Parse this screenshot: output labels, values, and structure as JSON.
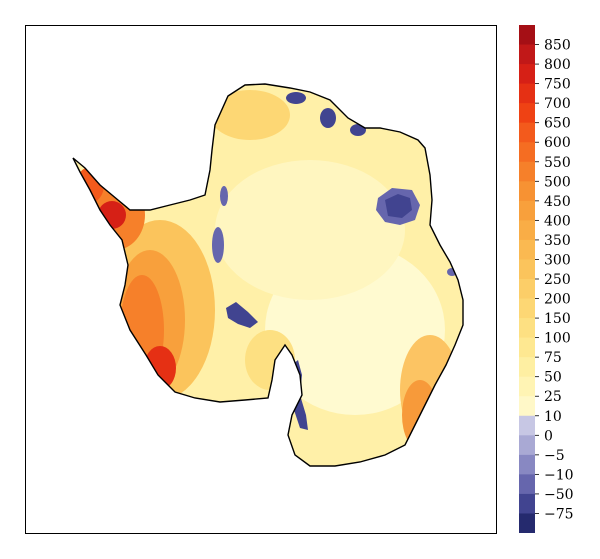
{
  "colorbar": {
    "levels": [
      {
        "label": "850",
        "color": "#a50f15"
      },
      {
        "label": "800",
        "color": "#c11818"
      },
      {
        "label": "750",
        "color": "#d62016"
      },
      {
        "label": "700",
        "color": "#e53014"
      },
      {
        "label": "650",
        "color": "#ef4214"
      },
      {
        "label": "600",
        "color": "#f35a1c"
      },
      {
        "label": "550",
        "color": "#f56d22"
      },
      {
        "label": "500",
        "color": "#f6802a"
      },
      {
        "label": "450",
        "color": "#f79233"
      },
      {
        "label": "400",
        "color": "#f8a03c"
      },
      {
        "label": "350",
        "color": "#f9ad46"
      },
      {
        "label": "300",
        "color": "#fab951"
      },
      {
        "label": "250",
        "color": "#fbc45c"
      },
      {
        "label": "200",
        "color": "#fcce68"
      },
      {
        "label": "150",
        "color": "#fdd774"
      },
      {
        "label": "100",
        "color": "#fde082"
      },
      {
        "label": "75",
        "color": "#fee891"
      },
      {
        "label": "50",
        "color": "#feefa2"
      },
      {
        "label": "25",
        "color": "#fff4b4"
      },
      {
        "label": "10",
        "color": "#fff8c8"
      },
      {
        "label": "0",
        "color": "#c7c7e4"
      },
      {
        "label": "−5",
        "color": "#a9a9d4"
      },
      {
        "label": "−10",
        "color": "#8888c2"
      },
      {
        "label": "−50",
        "color": "#6666ad"
      },
      {
        "label": "−75",
        "color": "#414490"
      }
    ],
    "bottom_color": "#252a6e"
  },
  "map": {
    "region": "Antarctica",
    "base_color": "#fff0a8",
    "interior_color": "#fffad0",
    "coastline_color": "#000000",
    "negative_color": "#414490"
  }
}
